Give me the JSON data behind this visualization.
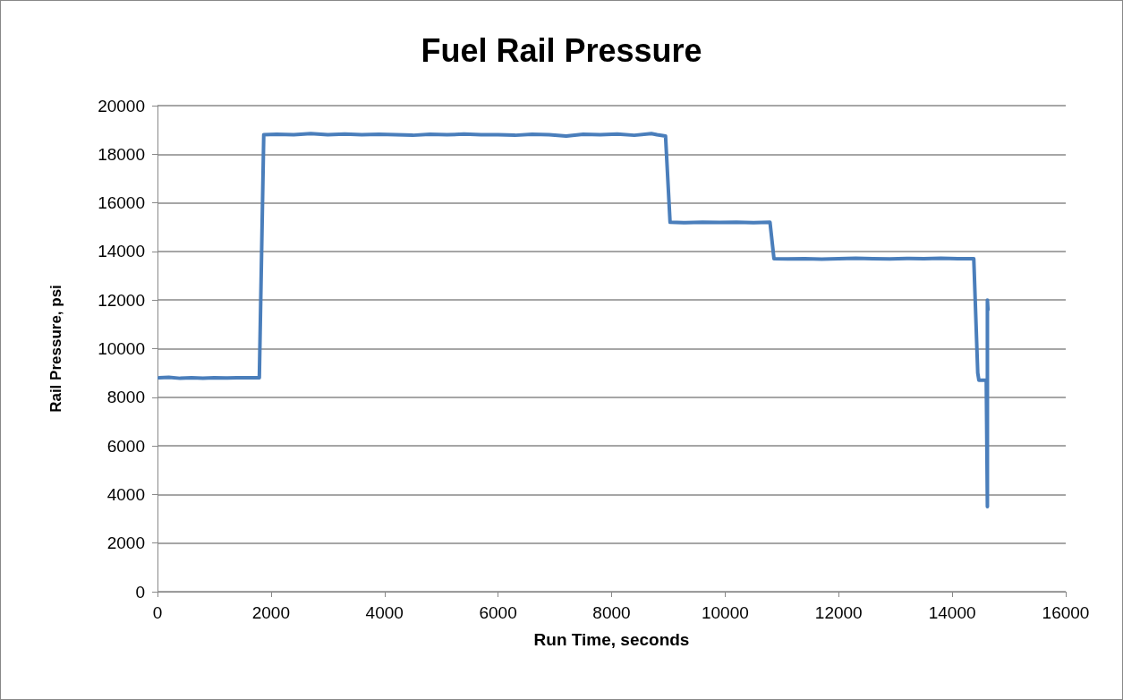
{
  "chart_data": {
    "type": "line",
    "title": "Fuel Rail Pressure",
    "xlabel": "Run Time, seconds",
    "ylabel": "Rail Pressure, psi",
    "xlim": [
      0,
      16000
    ],
    "xticks": [
      0,
      2000,
      4000,
      6000,
      8000,
      10000,
      12000,
      14000,
      16000
    ],
    "ylim": [
      0,
      20000
    ],
    "yticks": [
      0,
      2000,
      4000,
      6000,
      8000,
      10000,
      12000,
      14000,
      16000,
      18000,
      20000
    ],
    "grid": "y",
    "marker": "none",
    "line_style": "solid",
    "series": [
      {
        "color": "#4a7ebb",
        "x": [
          30,
          200,
          400,
          600,
          800,
          1000,
          1200,
          1400,
          1600,
          1794,
          1872,
          2100,
          2400,
          2700,
          3000,
          3300,
          3600,
          3900,
          4200,
          4500,
          4800,
          5100,
          5400,
          5700,
          6000,
          6300,
          6600,
          6900,
          7200,
          7500,
          7800,
          8100,
          8400,
          8700,
          8800,
          8950,
          9030,
          9300,
          9600,
          9900,
          10200,
          10500,
          10790,
          10860,
          11100,
          11400,
          11700,
          12000,
          12300,
          12600,
          12900,
          13200,
          13500,
          13800,
          14100,
          14380,
          14450,
          14470,
          14600,
          14620,
          14620,
          14630
        ],
        "values": [
          8800,
          8820,
          8780,
          8800,
          8780,
          8800,
          8790,
          8800,
          8800,
          8800,
          18800,
          18820,
          18800,
          18850,
          18800,
          18830,
          18800,
          18820,
          18800,
          18780,
          18820,
          18800,
          18830,
          18800,
          18800,
          18780,
          18820,
          18800,
          18750,
          18820,
          18800,
          18830,
          18780,
          18850,
          18800,
          18750,
          15200,
          15180,
          15200,
          15190,
          15200,
          15180,
          15200,
          13700,
          13690,
          13700,
          13680,
          13700,
          13720,
          13700,
          13690,
          13710,
          13700,
          13720,
          13700,
          13700,
          9000,
          8700,
          8700,
          3500,
          12000,
          11600
        ]
      }
    ]
  }
}
